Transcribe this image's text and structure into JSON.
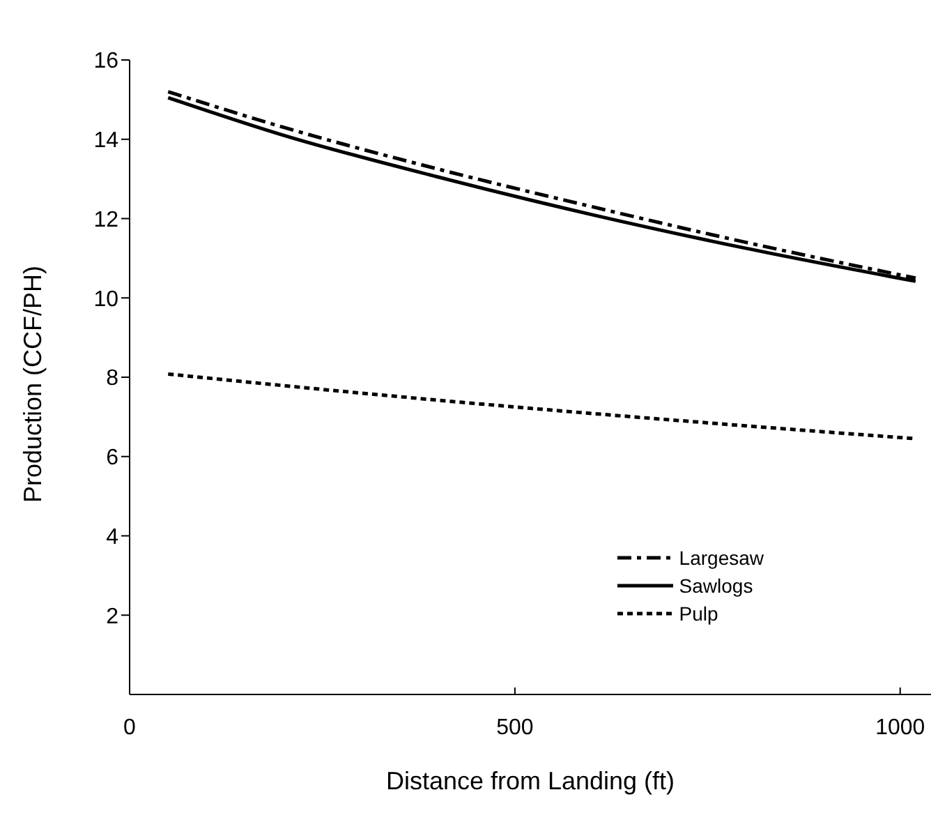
{
  "chart_data": {
    "type": "line",
    "xlabel": "Distance from Landing (ft)",
    "ylabel": "Production (CCF/PH)",
    "xlim": [
      0,
      1040
    ],
    "xticks": [
      0,
      500,
      1000
    ],
    "ylim": [
      0,
      16
    ],
    "yticks": [
      2,
      4,
      6,
      8,
      10,
      12,
      14,
      16
    ],
    "grid": false,
    "legend": "bottom right",
    "marker": "none",
    "series": [
      {
        "name": "Largesaw",
        "color": "#000000",
        "line_style": "dashdot",
        "x": [
          50,
          200,
          400,
          600,
          800,
          1020
        ],
        "values": [
          15.2,
          14.3,
          13.25,
          12.3,
          11.4,
          10.5
        ]
      },
      {
        "name": "Sawlogs",
        "color": "#000000",
        "line_style": "solid",
        "x": [
          50,
          200,
          400,
          600,
          800,
          1020
        ],
        "values": [
          15.05,
          14.1,
          13.05,
          12.1,
          11.25,
          10.42
        ]
      },
      {
        "name": "Pulp",
        "color": "#000000",
        "line_style": "dashed",
        "x": [
          50,
          300,
          500,
          750,
          1020
        ],
        "values": [
          8.08,
          7.6,
          7.25,
          6.85,
          6.45
        ]
      }
    ]
  }
}
